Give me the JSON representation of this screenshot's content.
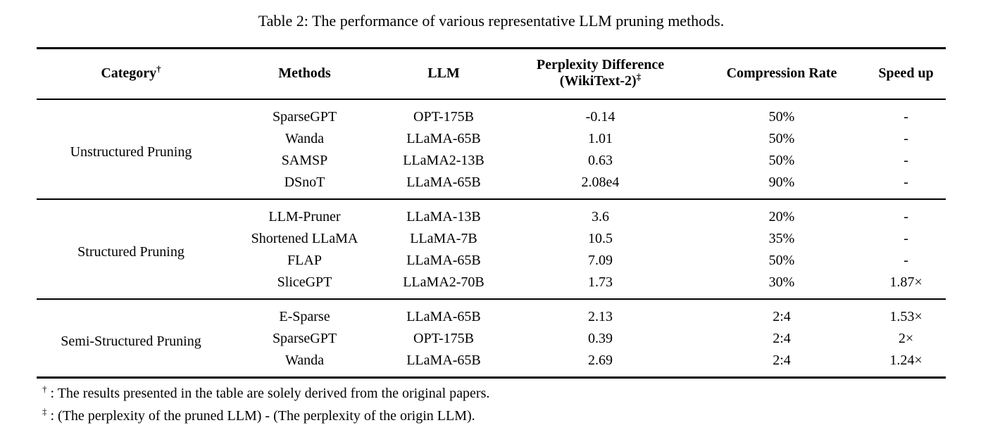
{
  "title": "Table 2: The performance of various representative LLM pruning methods.",
  "table": {
    "headers": {
      "category": "Category",
      "category_sup": "†",
      "methods": "Methods",
      "llm": "LLM",
      "perplexity_line1": "Perplexity Difference",
      "perplexity_line2": "(WikiText-2)",
      "perplexity_sup": "‡",
      "compression": "Compression Rate",
      "speedup": "Speed up"
    },
    "groups": [
      {
        "category": "Unstructured Pruning",
        "rows": [
          {
            "method": "SparseGPT",
            "llm": "OPT-175B",
            "ppl": "-0.14",
            "compression": "50%",
            "speedup": "-"
          },
          {
            "method": "Wanda",
            "llm": "LLaMA-65B",
            "ppl": "1.01",
            "compression": "50%",
            "speedup": "-"
          },
          {
            "method": "SAMSP",
            "llm": "LLaMA2-13B",
            "ppl": "0.63",
            "compression": "50%",
            "speedup": "-"
          },
          {
            "method": "DSnoT",
            "llm": "LLaMA-65B",
            "ppl": "2.08e4",
            "compression": "90%",
            "speedup": "-"
          }
        ]
      },
      {
        "category": "Structured Pruning",
        "rows": [
          {
            "method": "LLM-Pruner",
            "llm": "LLaMA-13B",
            "ppl": "3.6",
            "compression": "20%",
            "speedup": "-"
          },
          {
            "method": "Shortened LLaMA",
            "llm": "LLaMA-7B",
            "ppl": "10.5",
            "compression": "35%",
            "speedup": "-"
          },
          {
            "method": "FLAP",
            "llm": "LLaMA-65B",
            "ppl": "7.09",
            "compression": "50%",
            "speedup": "-"
          },
          {
            "method": "SliceGPT",
            "llm": "LLaMA2-70B",
            "ppl": "1.73",
            "compression": "30%",
            "speedup": "1.87×"
          }
        ]
      },
      {
        "category": "Semi-Structured Pruning",
        "rows": [
          {
            "method": "E-Sparse",
            "llm": "LLaMA-65B",
            "ppl": "2.13",
            "compression": "2:4",
            "speedup": "1.53×"
          },
          {
            "method": "SparseGPT",
            "llm": "OPT-175B",
            "ppl": "0.39",
            "compression": "2:4",
            "speedup": "2×"
          },
          {
            "method": "Wanda",
            "llm": "LLaMA-65B",
            "ppl": "2.69",
            "compression": "2:4",
            "speedup": "1.24×"
          }
        ]
      }
    ]
  },
  "footnotes": [
    {
      "symbol": "†",
      "text": ": The results presented in the table are solely derived from the original papers."
    },
    {
      "symbol": "‡",
      "text": ": (The perplexity of the pruned LLM) - (The perplexity of the origin LLM)."
    }
  ]
}
